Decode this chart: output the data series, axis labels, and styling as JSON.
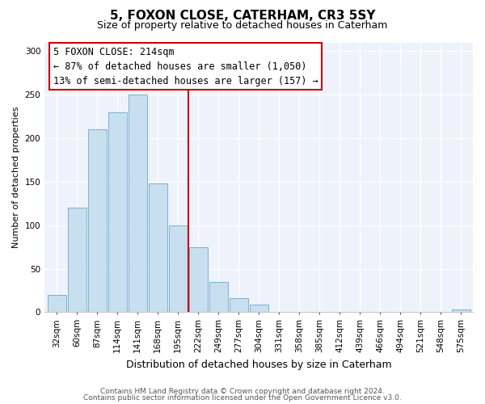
{
  "title": "5, FOXON CLOSE, CATERHAM, CR3 5SY",
  "subtitle": "Size of property relative to detached houses in Caterham",
  "xlabel": "Distribution of detached houses by size in Caterham",
  "ylabel": "Number of detached properties",
  "bar_labels": [
    "32sqm",
    "60sqm",
    "87sqm",
    "114sqm",
    "141sqm",
    "168sqm",
    "195sqm",
    "222sqm",
    "249sqm",
    "277sqm",
    "304sqm",
    "331sqm",
    "358sqm",
    "385sqm",
    "412sqm",
    "439sqm",
    "466sqm",
    "494sqm",
    "521sqm",
    "548sqm",
    "575sqm"
  ],
  "bar_values": [
    20,
    120,
    210,
    230,
    250,
    148,
    100,
    75,
    35,
    16,
    9,
    0,
    0,
    0,
    0,
    0,
    0,
    0,
    0,
    0,
    3
  ],
  "bar_color": "#c8dff0",
  "bar_edge_color": "#7ab3cc",
  "vline_color": "#cc0000",
  "annotation_title": "5 FOXON CLOSE: 214sqm",
  "annotation_line1": "← 87% of detached houses are smaller (1,050)",
  "annotation_line2": "13% of semi-detached houses are larger (157) →",
  "annotation_box_color": "#ffffff",
  "annotation_box_edge": "#cc0000",
  "ylim": [
    0,
    310
  ],
  "yticks": [
    0,
    50,
    100,
    150,
    200,
    250,
    300
  ],
  "footnote1": "Contains HM Land Registry data © Crown copyright and database right 2024.",
  "footnote2": "Contains public sector information licensed under the Open Government Licence v3.0.",
  "bg_color": "#ffffff",
  "plot_bg_color": "#eef2fb",
  "grid_color": "#ffffff",
  "title_fontsize": 11,
  "subtitle_fontsize": 9,
  "ylabel_fontsize": 8,
  "xlabel_fontsize": 9,
  "tick_fontsize": 7.5,
  "ann_fontsize": 8.5,
  "footnote_fontsize": 6.5
}
